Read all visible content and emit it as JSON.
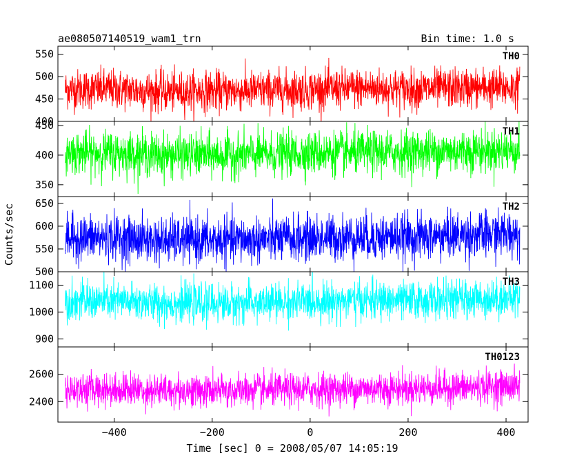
{
  "chart_data": {
    "type": "line",
    "title": "ae080507140519_wam1_trn",
    "bin_time": "Bin time: 1.0 s",
    "xlabel": "Time [sec] 0 = 2008/05/07 14:05:19",
    "ylabel": "Counts/sec",
    "xlim": [
      -515,
      445
    ],
    "x_range": [
      -500,
      428
    ],
    "x_ticks": [
      -400,
      -200,
      0,
      200,
      400
    ],
    "x_tick_labels": [
      "−400",
      "−200",
      "0",
      "200",
      "400"
    ],
    "panels": [
      {
        "name": "TH0",
        "color": "#ff0000",
        "ylim": [
          400,
          568
        ],
        "yticks": [
          400,
          450,
          500,
          550
        ],
        "ytick_labels": [
          "400",
          "450",
          "500",
          "550"
        ],
        "mean": 472,
        "sigma": 22,
        "trend": [
          0,
          0,
          -6,
          -4,
          -3,
          0,
          2,
          0,
          3,
          3
        ]
      },
      {
        "name": "TH1",
        "color": "#00ff00",
        "ylim": [
          330,
          457
        ],
        "yticks": [
          350,
          400,
          450
        ],
        "ytick_labels": [
          "350",
          "400",
          "450"
        ],
        "mean": 404,
        "sigma": 18,
        "trend": [
          0,
          0,
          -4,
          -4,
          -3,
          0,
          0,
          2,
          3,
          4
        ]
      },
      {
        "name": "TH2",
        "color": "#0000ff",
        "ylim": [
          500,
          665
        ],
        "yticks": [
          500,
          550,
          600,
          650
        ],
        "ytick_labels": [
          "500",
          "550",
          "600",
          "650"
        ],
        "mean": 574,
        "sigma": 25,
        "trend": [
          0,
          0,
          -6,
          -5,
          -3,
          0,
          2,
          2,
          6,
          10
        ]
      },
      {
        "name": "TH3",
        "color": "#00ffff",
        "ylim": [
          870,
          1150
        ],
        "yticks": [
          900,
          1000,
          1100
        ],
        "ytick_labels": [
          "900",
          "1000",
          "1100"
        ],
        "mean": 1040,
        "sigma": 35,
        "trend": [
          0,
          0,
          -8,
          -8,
          -6,
          0,
          3,
          3,
          8,
          14
        ]
      },
      {
        "name": "TH0123",
        "color": "#ff00ff",
        "ylim": [
          2250,
          2800
        ],
        "yticks": [
          2400,
          2600
        ],
        "ytick_labels": [
          "2400",
          "2600"
        ],
        "mean": 2490,
        "sigma": 60,
        "trend": [
          0,
          0,
          -10,
          -12,
          -8,
          0,
          5,
          8,
          12,
          25
        ]
      }
    ]
  }
}
